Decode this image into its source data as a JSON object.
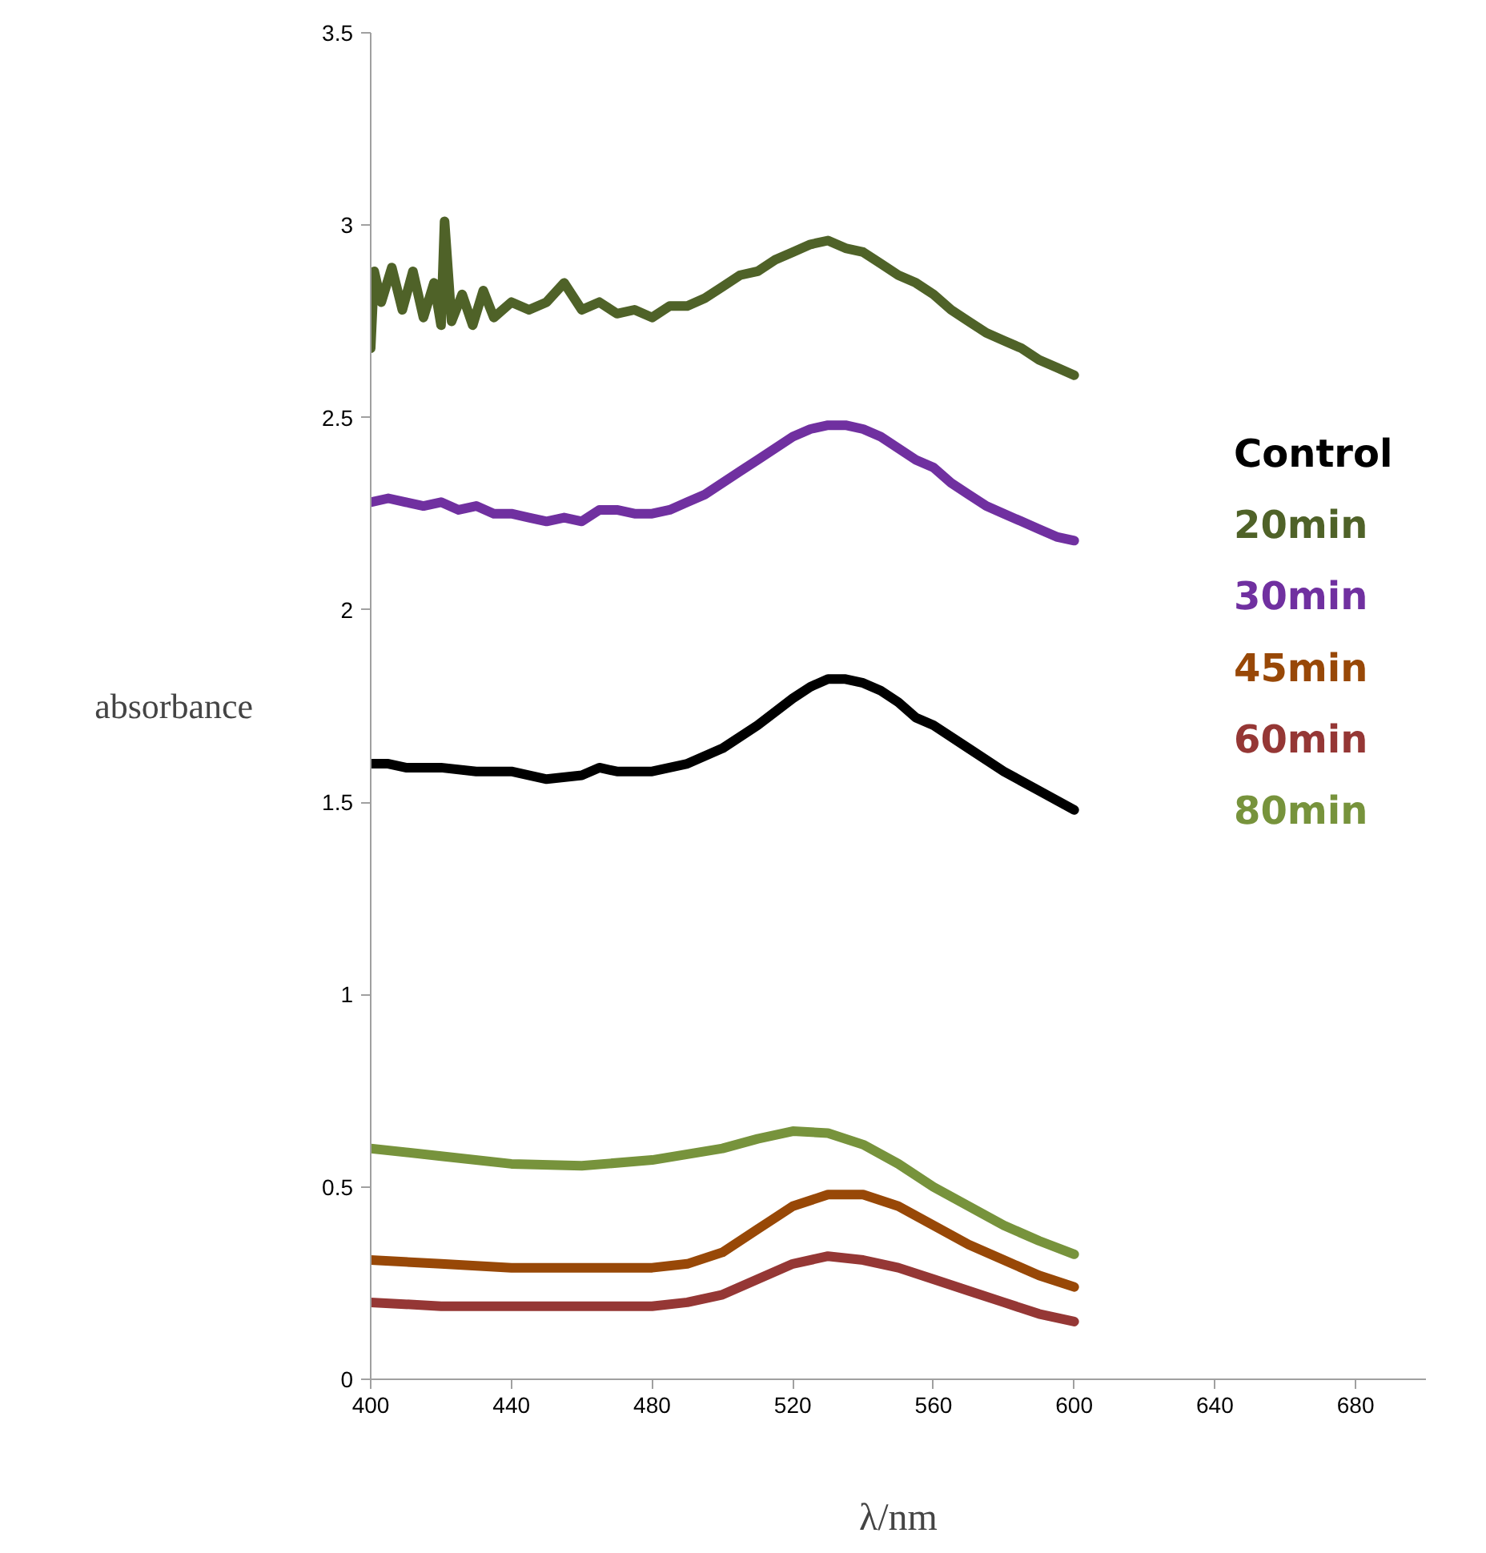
{
  "chart_data": {
    "type": "line",
    "xlabel": "λ/nm",
    "ylabel": "absorbance",
    "xlim": [
      400,
      700
    ],
    "xticks": [
      400,
      440,
      480,
      520,
      560,
      600,
      640,
      680
    ],
    "ylim": [
      0,
      3.5
    ],
    "yticks": [
      0,
      0.5,
      1,
      1.5,
      2,
      2.5,
      3,
      3.5
    ],
    "grid": false,
    "marker": "none",
    "line_style": "solid",
    "series": [
      {
        "name": "Control",
        "color": "#000000",
        "x": [
          400,
          405,
          410,
          415,
          420,
          430,
          440,
          450,
          460,
          465,
          470,
          480,
          490,
          500,
          510,
          520,
          525,
          530,
          535,
          540,
          545,
          550,
          555,
          560,
          570,
          580,
          590,
          600
        ],
        "values": [
          1.6,
          1.6,
          1.59,
          1.59,
          1.59,
          1.58,
          1.58,
          1.56,
          1.57,
          1.59,
          1.58,
          1.58,
          1.6,
          1.64,
          1.7,
          1.77,
          1.8,
          1.82,
          1.82,
          1.81,
          1.79,
          1.76,
          1.72,
          1.7,
          1.64,
          1.58,
          1.53,
          1.48
        ]
      },
      {
        "name": "20min",
        "color": "#4f6228",
        "x": [
          400,
          401,
          403,
          406,
          409,
          412,
          415,
          418,
          420,
          421,
          423,
          426,
          429,
          432,
          435,
          440,
          445,
          450,
          455,
          460,
          465,
          470,
          475,
          480,
          485,
          490,
          495,
          500,
          505,
          510,
          515,
          520,
          525,
          530,
          535,
          540,
          545,
          550,
          555,
          560,
          565,
          570,
          575,
          580,
          585,
          590,
          595,
          600
        ],
        "values": [
          2.68,
          2.88,
          2.8,
          2.89,
          2.78,
          2.88,
          2.76,
          2.85,
          2.74,
          3.01,
          2.75,
          2.82,
          2.74,
          2.83,
          2.76,
          2.8,
          2.78,
          2.8,
          2.85,
          2.78,
          2.8,
          2.77,
          2.78,
          2.76,
          2.79,
          2.79,
          2.81,
          2.84,
          2.87,
          2.88,
          2.91,
          2.93,
          2.95,
          2.96,
          2.94,
          2.93,
          2.9,
          2.87,
          2.85,
          2.82,
          2.78,
          2.75,
          2.72,
          2.7,
          2.68,
          2.65,
          2.63,
          2.61
        ]
      },
      {
        "name": "30min",
        "color": "#7030a0",
        "x": [
          400,
          405,
          410,
          415,
          420,
          425,
          430,
          435,
          440,
          445,
          450,
          455,
          460,
          465,
          470,
          475,
          480,
          485,
          490,
          495,
          500,
          505,
          510,
          515,
          520,
          525,
          530,
          535,
          540,
          545,
          550,
          555,
          560,
          565,
          570,
          575,
          580,
          585,
          590,
          595,
          600
        ],
        "values": [
          2.28,
          2.29,
          2.28,
          2.27,
          2.28,
          2.26,
          2.27,
          2.25,
          2.25,
          2.24,
          2.23,
          2.24,
          2.23,
          2.26,
          2.26,
          2.25,
          2.25,
          2.26,
          2.28,
          2.3,
          2.33,
          2.36,
          2.39,
          2.42,
          2.45,
          2.47,
          2.48,
          2.48,
          2.47,
          2.45,
          2.42,
          2.39,
          2.37,
          2.33,
          2.3,
          2.27,
          2.25,
          2.23,
          2.21,
          2.19,
          2.18
        ]
      },
      {
        "name": "45min",
        "color": "#984807",
        "x": [
          400,
          420,
          440,
          460,
          480,
          490,
          500,
          510,
          520,
          530,
          540,
          550,
          560,
          570,
          580,
          590,
          600
        ],
        "values": [
          0.31,
          0.3,
          0.29,
          0.29,
          0.29,
          0.3,
          0.33,
          0.39,
          0.45,
          0.48,
          0.48,
          0.45,
          0.4,
          0.35,
          0.31,
          0.27,
          0.24
        ]
      },
      {
        "name": "60min",
        "color": "#953735",
        "x": [
          400,
          420,
          440,
          460,
          480,
          490,
          500,
          510,
          520,
          530,
          540,
          550,
          560,
          570,
          580,
          590,
          600
        ],
        "values": [
          0.2,
          0.19,
          0.19,
          0.19,
          0.19,
          0.2,
          0.22,
          0.26,
          0.3,
          0.32,
          0.31,
          0.29,
          0.26,
          0.23,
          0.2,
          0.17,
          0.15
        ]
      },
      {
        "name": "80min",
        "color": "#77933c",
        "x": [
          400,
          420,
          440,
          460,
          480,
          500,
          510,
          520,
          530,
          540,
          550,
          560,
          570,
          580,
          590,
          600
        ],
        "values": [
          0.6,
          0.58,
          0.56,
          0.555,
          0.57,
          0.6,
          0.625,
          0.645,
          0.64,
          0.61,
          0.56,
          0.5,
          0.45,
          0.4,
          0.36,
          0.325
        ]
      }
    ]
  }
}
